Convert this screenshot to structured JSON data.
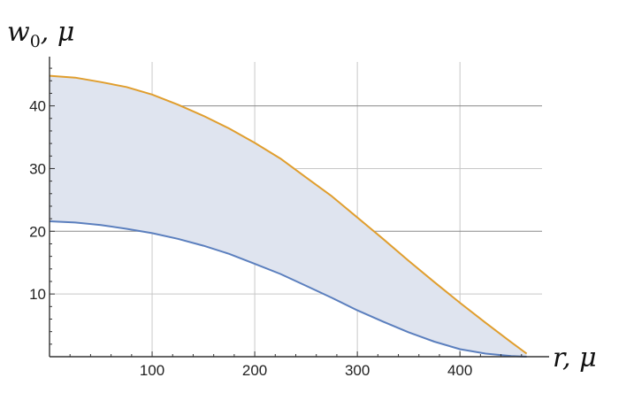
{
  "chart_data": {
    "type": "area",
    "title": "",
    "xlabel": "r, μ",
    "ylabel_main": "w",
    "ylabel_sub": "0",
    "ylabel_rest": ", μ",
    "xlim": [
      0,
      480
    ],
    "ylim": [
      0,
      47
    ],
    "x_ticks": [
      100,
      200,
      300,
      400
    ],
    "y_ticks": [
      10,
      20,
      30,
      40
    ],
    "grid": true,
    "legend": "none",
    "fill_color": "#dfe4ef",
    "series": [
      {
        "color": "#e09e2e",
        "x": [
          0,
          25,
          50,
          75,
          100,
          125,
          150,
          175,
          200,
          225,
          250,
          275,
          300,
          325,
          350,
          375,
          400,
          425,
          450,
          465
        ],
        "values": [
          44.8,
          44.5,
          43.8,
          43.0,
          41.8,
          40.2,
          38.4,
          36.4,
          34.1,
          31.6,
          28.6,
          25.6,
          22.2,
          18.8,
          15.3,
          11.9,
          8.6,
          5.4,
          2.3,
          0.5
        ]
      },
      {
        "color": "#5b7fbe",
        "x": [
          0,
          25,
          50,
          75,
          100,
          125,
          150,
          175,
          200,
          225,
          250,
          275,
          300,
          325,
          350,
          375,
          400,
          425,
          450,
          465
        ],
        "values": [
          21.6,
          21.4,
          21.0,
          20.4,
          19.7,
          18.8,
          17.7,
          16.4,
          14.8,
          13.2,
          11.3,
          9.4,
          7.4,
          5.6,
          3.9,
          2.4,
          1.2,
          0.5,
          0.1,
          0.0
        ]
      }
    ]
  }
}
